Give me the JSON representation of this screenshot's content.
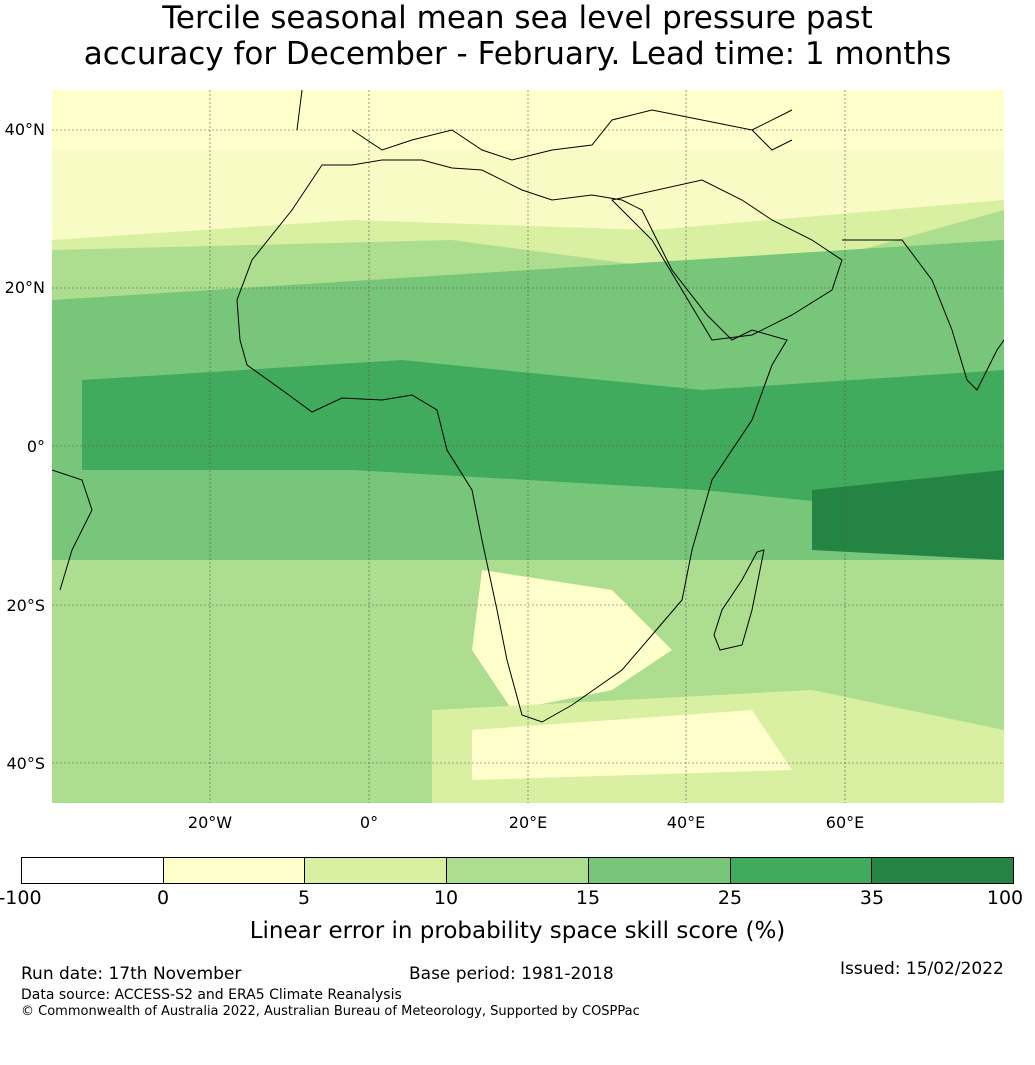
{
  "title": {
    "line1": "Tercile seasonal mean sea level pressure past",
    "line2": "accuracy for December - February. Lead time: 1 months"
  },
  "map": {
    "latitude_labels": [
      "40°N",
      "20°N",
      "0°",
      "20°S",
      "40°S"
    ],
    "longitude_labels": [
      "20°W",
      "0°",
      "20°E",
      "40°E",
      "60°E"
    ],
    "region": "Africa",
    "gridlines": true
  },
  "colorbar": {
    "ticks": [
      "-100",
      "0",
      "5",
      "10",
      "15",
      "25",
      "35",
      "100"
    ],
    "colors": [
      "#ffffff",
      "#ffffcc",
      "#d9f0a3",
      "#addd8e",
      "#78c679",
      "#41ab5d",
      "#238443"
    ],
    "label": "Linear error in probability space skill score (%)"
  },
  "footer": {
    "run_date": "Run date: 17th November",
    "base_period": "Base period: 1981-2018",
    "issued": "Issued: 15/02/2022",
    "data_source": "Data source: ACCESS-S2 and ERA5 Climate Reanalysis",
    "copyright": "© Commonwealth of Australia 2022, Australian Bureau of Meteorology, Supported by COSPPac"
  }
}
